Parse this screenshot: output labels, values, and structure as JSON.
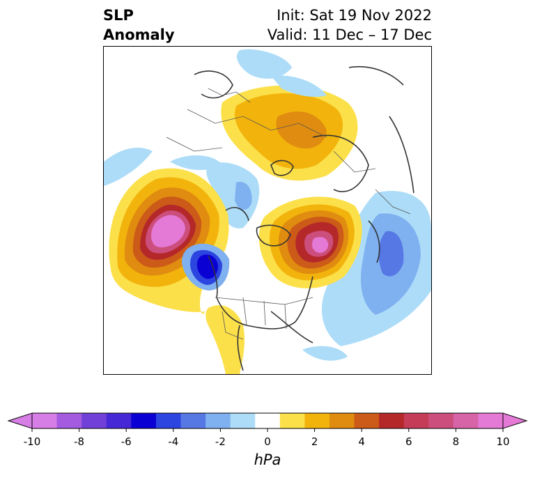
{
  "title": {
    "left_line1": "SLP",
    "left_line2": "Anomaly",
    "right_line1": "Init: Sat 19 Nov 2022",
    "right_line2": "Valid: 11 Dec – 17 Dec"
  },
  "map": {
    "projection": "north-polar-stereographic",
    "features": [
      "coastlines",
      "country-borders",
      "state-province-borders"
    ],
    "anomalies": [
      {
        "name": "north-pacific-high",
        "sign": "positive",
        "peak_hpa": 10
      },
      {
        "name": "northeast-pacific-low",
        "sign": "negative",
        "peak_hpa": -7
      },
      {
        "name": "greenland-high",
        "sign": "positive",
        "peak_hpa": 10
      },
      {
        "name": "siberia-high",
        "sign": "positive",
        "peak_hpa": 4
      },
      {
        "name": "north-atlantic-low",
        "sign": "negative",
        "peak_hpa": -4
      },
      {
        "name": "southwest-us-high",
        "sign": "positive",
        "peak_hpa": 2
      }
    ]
  },
  "colorbar": {
    "unit_label": "hPa",
    "ticks": [
      "-10",
      "-8",
      "-6",
      "-4",
      "-2",
      "0",
      "2",
      "4",
      "6",
      "8",
      "10"
    ],
    "extend": "both",
    "colors": [
      "#d77ee6",
      "#a45be0",
      "#7040d8",
      "#4628d6",
      "#0a00d4",
      "#2c44e0",
      "#5578e4",
      "#7fb0f0",
      "#acdcf8",
      "#ffffff",
      "#fce04a",
      "#f2b40c",
      "#e08c10",
      "#cc5a18",
      "#b4282a",
      "#c43c58",
      "#cc4e7c",
      "#d864a8",
      "#e47ad6"
    ],
    "extend_low_color": "#d77ee6",
    "extend_high_color": "#e47ad6"
  }
}
